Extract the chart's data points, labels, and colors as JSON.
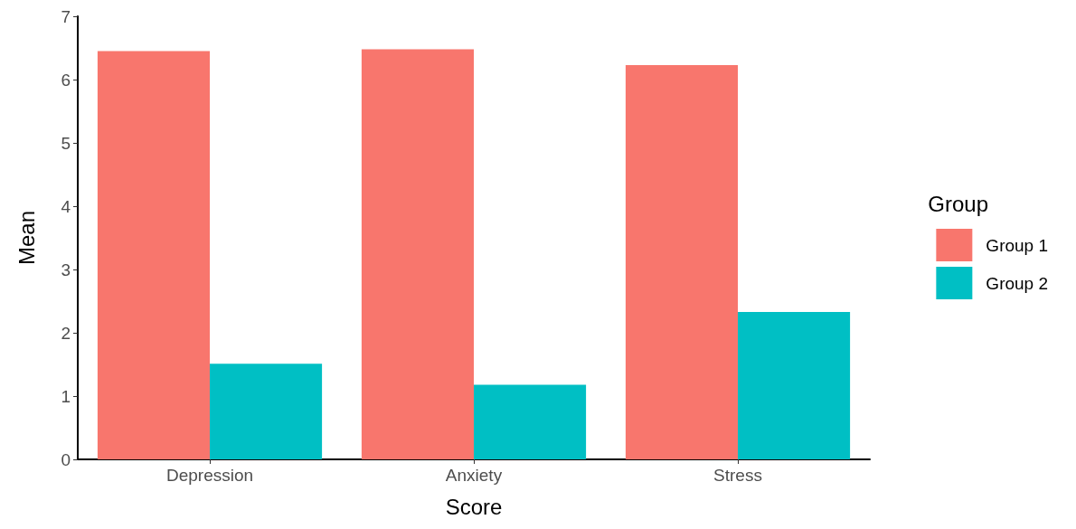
{
  "chart_data": {
    "type": "bar",
    "xlabel": "Score",
    "ylabel": "Mean",
    "legend_title": "Group",
    "categories": [
      "Depression",
      "Anxiety",
      "Stress"
    ],
    "series": [
      {
        "name": "Group 1",
        "color": "#f8766d",
        "values": [
          6.45,
          6.48,
          6.23
        ]
      },
      {
        "name": "Group 2",
        "color": "#00bfc4",
        "values": [
          1.51,
          1.18,
          2.33
        ]
      }
    ],
    "ylim": [
      0,
      7
    ],
    "yticks": [
      0,
      1,
      2,
      3,
      4,
      5,
      6,
      7
    ],
    "grid": false,
    "legend": "right"
  }
}
